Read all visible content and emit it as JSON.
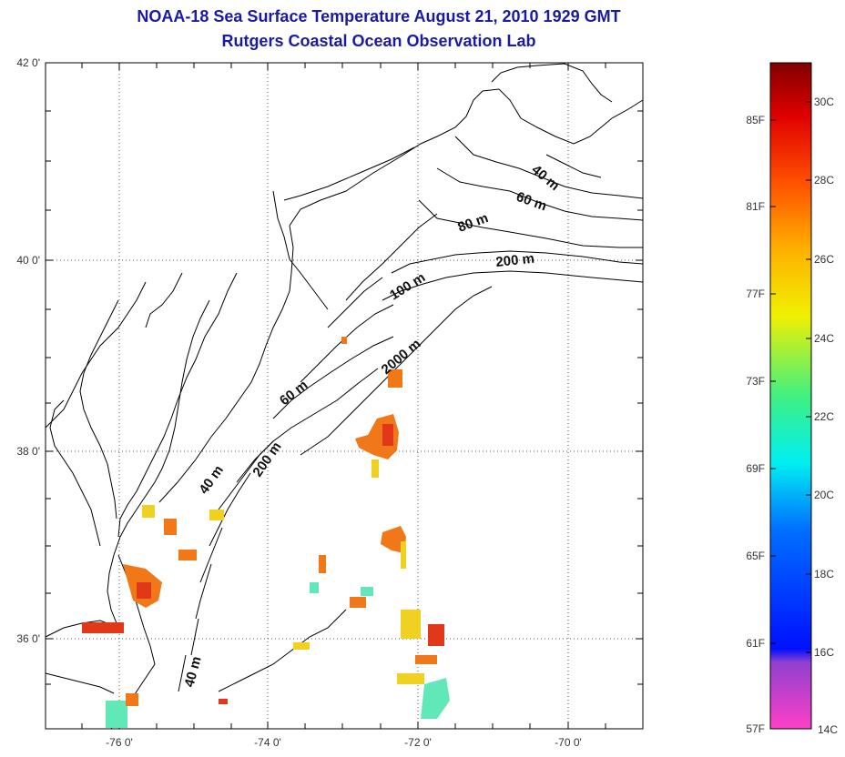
{
  "title": "NOAA-18 Sea Surface Temperature August 21, 2010 1929 GMT",
  "subtitle": "Rutgers Coastal Ocean Observation Lab",
  "axes": {
    "lat_ticks": [
      "42 0'",
      "40 0'",
      "38 0'",
      "36 0'"
    ],
    "lon_ticks": [
      "-76 0'",
      "-74 0'",
      "-72 0'",
      "-70 0'"
    ]
  },
  "contour_labels": {
    "c1": "40 m",
    "c2": "60 m",
    "c3": "80 m",
    "c4": "200 m",
    "c5": "100 m",
    "c6": "2000 m",
    "c7": "60 m",
    "c8": "40 m",
    "c9": "200 m",
    "c10": "40 m"
  },
  "colorbar": {
    "f_labels": [
      "85F",
      "81F",
      "77F",
      "73F",
      "69F",
      "65F",
      "61F",
      "57F"
    ],
    "c_labels": [
      "30C",
      "28C",
      "26C",
      "24C",
      "22C",
      "20C",
      "18C",
      "16C",
      "14C"
    ]
  },
  "colors": {
    "title": "#1a1aa6",
    "warm": "#f07818",
    "hot": "#e03818",
    "mid": "#f0d020",
    "cool": "#60e8b8"
  }
}
